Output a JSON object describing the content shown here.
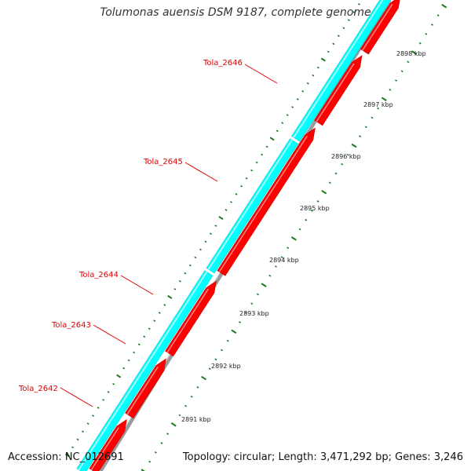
{
  "title": "Tolumonas auensis DSM 9187, complete genome",
  "accession": "Accession: NC_012691",
  "summary": "Topology: circular; Length: 3,471,292 bp; Genes: 3,246",
  "colors": {
    "forward_strand": "#00ffff",
    "reverse_strand": "#ff0000",
    "backbone": "#999999",
    "ticks": "#1a7a1a",
    "label": "#e00000"
  },
  "genes": [
    {
      "label": "Tola_2642"
    },
    {
      "label": "Tola_2643"
    },
    {
      "label": "Tola_2644"
    },
    {
      "label": "Tola_2645"
    },
    {
      "label": "Tola_2646"
    }
  ],
  "scale_labels": [
    "2891 kbp",
    "2892 kbp",
    "2893 kbp",
    "2894 kbp",
    "2895 kbp",
    "2896 kbp",
    "2897 kbp",
    "2898 kbp"
  ]
}
